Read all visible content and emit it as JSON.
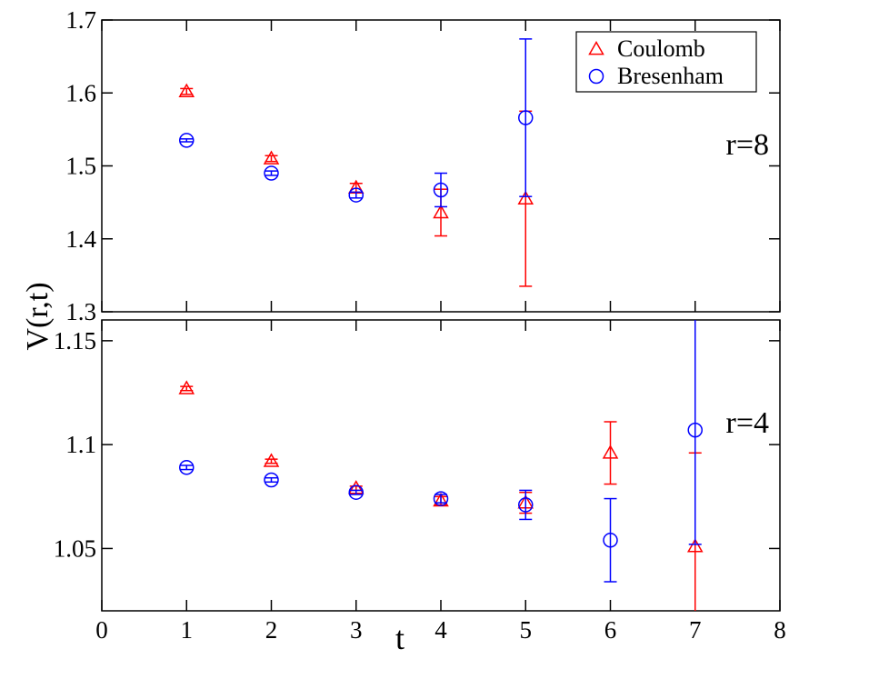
{
  "chart_data": {
    "type": "scatter",
    "xlabel": "t",
    "ylabel": "V(r,t)",
    "xlim": [
      0,
      8
    ],
    "xticks": [
      "0",
      "1",
      "2",
      "3",
      "4",
      "5",
      "6",
      "7",
      "8"
    ],
    "grid": false,
    "legend": {
      "placement": "top-right",
      "entries": [
        "Coulomb",
        "Bresenham"
      ]
    },
    "colors": {
      "Coulomb": "#ff0000",
      "Bresenham": "#0000ff",
      "axes": "#000000"
    },
    "panels": [
      {
        "label": "r=8",
        "ylim": [
          1.3,
          1.7
        ],
        "yticks": [
          "1.3",
          "1.4",
          "1.5",
          "1.6",
          "1.7"
        ],
        "series": [
          {
            "name": "Coulomb",
            "marker": "triangle",
            "points": [
              {
                "x": 1,
                "y": 1.602,
                "err": 0.004
              },
              {
                "x": 2,
                "y": 1.51,
                "err": 0.004
              },
              {
                "x": 3,
                "y": 1.47,
                "err": 0.006
              },
              {
                "x": 4,
                "y": 1.436,
                "err": 0.032
              },
              {
                "x": 5,
                "y": 1.455,
                "err": 0.12
              }
            ]
          },
          {
            "name": "Bresenham",
            "marker": "circle",
            "points": [
              {
                "x": 1,
                "y": 1.535,
                "err": 0.002
              },
              {
                "x": 2,
                "y": 1.49,
                "err": 0.003
              },
              {
                "x": 3,
                "y": 1.46,
                "err": 0.004
              },
              {
                "x": 4,
                "y": 1.467,
                "err": 0.023
              },
              {
                "x": 5,
                "y": 1.566,
                "err": 0.108
              }
            ]
          }
        ]
      },
      {
        "label": "r=4",
        "ylim": [
          1.02,
          1.16
        ],
        "yticks": [
          "1.05",
          "1.1",
          "1.15"
        ],
        "series": [
          {
            "name": "Coulomb",
            "marker": "triangle",
            "points": [
              {
                "x": 1,
                "y": 1.127,
                "err": 0.001
              },
              {
                "x": 2,
                "y": 1.092,
                "err": 0.001
              },
              {
                "x": 3,
                "y": 1.079,
                "err": 0.001
              },
              {
                "x": 4,
                "y": 1.073,
                "err": 0.002
              },
              {
                "x": 5,
                "y": 1.072,
                "err": 0.005
              },
              {
                "x": 6,
                "y": 1.096,
                "err": 0.015
              },
              {
                "x": 7,
                "y": 1.051,
                "err": 0.045
              }
            ]
          },
          {
            "name": "Bresenham",
            "marker": "circle",
            "points": [
              {
                "x": 1,
                "y": 1.089,
                "err": 0.001
              },
              {
                "x": 2,
                "y": 1.083,
                "err": 0.001
              },
              {
                "x": 3,
                "y": 1.077,
                "err": 0.001
              },
              {
                "x": 4,
                "y": 1.074,
                "err": 0.002
              },
              {
                "x": 5,
                "y": 1.071,
                "err": 0.007
              },
              {
                "x": 6,
                "y": 1.054,
                "err": 0.02
              },
              {
                "x": 7,
                "y": 1.107,
                "err": 0.055
              }
            ]
          }
        ]
      }
    ]
  }
}
